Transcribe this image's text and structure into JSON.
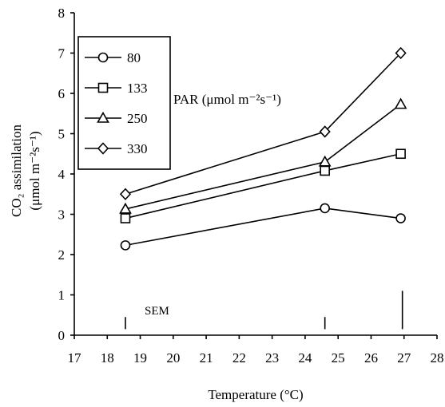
{
  "chart_data": {
    "type": "line",
    "xlabel": "Temperature (°C)",
    "ylabel_line1": "CO₂ assimilation",
    "ylabel_line2": "(μmol m⁻²s⁻¹)",
    "xlim": [
      17,
      28
    ],
    "ylim": [
      0,
      8
    ],
    "xticks": [
      17,
      18,
      19,
      20,
      21,
      22,
      23,
      24,
      25,
      26,
      27,
      28
    ],
    "yticks": [
      0,
      1,
      2,
      3,
      4,
      5,
      6,
      7,
      8
    ],
    "grid": false,
    "legend_position": "top-left",
    "legend_title": "PAR (μmol m⁻²s⁻¹)",
    "series": [
      {
        "name": "80",
        "marker": "circle",
        "x": [
          18.55,
          24.6,
          26.9
        ],
        "y": [
          2.23,
          3.15,
          2.9
        ]
      },
      {
        "name": "133",
        "marker": "square",
        "x": [
          18.55,
          24.6,
          26.9
        ],
        "y": [
          2.9,
          4.08,
          4.5
        ]
      },
      {
        "name": "250",
        "marker": "triangle",
        "x": [
          18.55,
          24.6,
          26.9
        ],
        "y": [
          3.13,
          4.3,
          5.73
        ]
      },
      {
        "name": "330",
        "marker": "diamond",
        "x": [
          18.55,
          24.6,
          26.9
        ],
        "y": [
          3.5,
          5.05,
          7.0
        ]
      }
    ],
    "sem_label": "SEM",
    "sem_bars": [
      {
        "x": 18.55,
        "y_low": 0.15,
        "y_high": 0.45
      },
      {
        "x": 24.6,
        "y_low": 0.15,
        "y_high": 0.45
      },
      {
        "x": 26.95,
        "y_low": 0.15,
        "y_high": 1.1
      }
    ]
  }
}
